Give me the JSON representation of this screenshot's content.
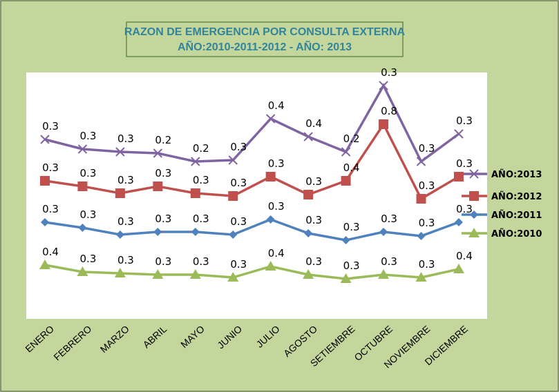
{
  "chart_data": {
    "type": "stacked-line",
    "title": "RAZON DE EMERGENCIA POR CONSULTA EXTERNA",
    "subtitle": "AÑO:2010-2011-2012 - AÑO: 2013",
    "categories": [
      "ENERO",
      "FEBRERO",
      "MARZO",
      "ABRIL",
      "MAYO",
      "JUNIO",
      "JULIO",
      "AGOSTO",
      "SETIEMBRE",
      "OCTUBRE",
      "NOVIEMBRE",
      "DICIEMBRE"
    ],
    "legend": "right",
    "series": [
      {
        "name": "AÑO:2013",
        "color": "#8064a2",
        "marker": "x",
        "values": [
          0.3,
          0.27,
          0.3,
          0.24,
          0.23,
          0.26,
          0.42,
          0.42,
          0.21,
          0.28,
          0.27,
          0.31
        ],
        "value_labels": [
          "0.3",
          "0.3",
          "0.3",
          "0.2",
          "0.2",
          "0.3",
          "0.4",
          "0.4",
          "0.2",
          "0.3",
          "0.3",
          "0.3"
        ]
      },
      {
        "name": "AÑO:2012",
        "color": "#c0504d",
        "marker": "square",
        "values": [
          0.3,
          0.3,
          0.3,
          0.33,
          0.28,
          0.28,
          0.31,
          0.28,
          0.43,
          0.78,
          0.27,
          0.33
        ],
        "value_labels": [
          "0.3",
          "0.3",
          "0.3",
          "0.3",
          "0.3",
          "0.3",
          "0.3",
          "0.3",
          "0.4",
          "0.8",
          "0.3",
          "0.3"
        ]
      },
      {
        "name": "AÑO:2011",
        "color": "#4f81bd",
        "marker": "diamond",
        "values": [
          0.31,
          0.32,
          0.28,
          0.31,
          0.31,
          0.31,
          0.34,
          0.3,
          0.28,
          0.31,
          0.3,
          0.34
        ],
        "value_labels": [
          "0.3",
          "0.3",
          "0.3",
          "0.3",
          "0.3",
          "0.3",
          "0.3",
          "0.3",
          "0.3",
          "0.3",
          "0.3",
          "0.3"
        ]
      },
      {
        "name": "AÑO:2010",
        "color": "#9bbb59",
        "marker": "triangle",
        "values": [
          0.39,
          0.34,
          0.33,
          0.32,
          0.32,
          0.3,
          0.38,
          0.32,
          0.29,
          0.32,
          0.3,
          0.36
        ],
        "value_labels": [
          "0.4",
          "0.3",
          "0.3",
          "0.3",
          "0.3",
          "0.3",
          "0.4",
          "0.3",
          "0.3",
          "0.3",
          "0.3",
          "0.4"
        ]
      }
    ]
  }
}
